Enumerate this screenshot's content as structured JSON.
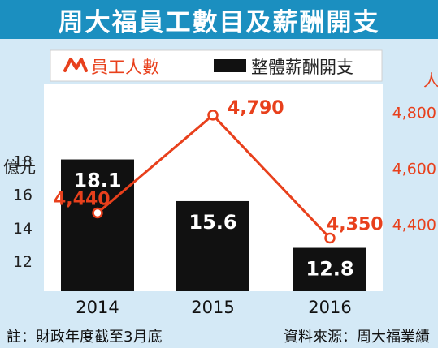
{
  "title": "周大福員工數目及薪酬開支",
  "legend": {
    "line_label": "員工人數",
    "bar_label": "整體薪酬開支"
  },
  "footer": {
    "note": "註：財政年度截至3月底",
    "source": "資料來源：周大福業績"
  },
  "colors": {
    "title_bg": "#1b8fc0",
    "plot_bg": "#ffffff",
    "panel_bg": "#d4e9f6",
    "bar": "#111111",
    "line": "#e8401c",
    "left_axis_text": "#222222"
  },
  "chart_data": {
    "type": "bar",
    "categories": [
      "2014",
      "2015",
      "2016"
    ],
    "series": [
      {
        "name": "整體薪酬開支",
        "type": "bar",
        "axis": "left",
        "values": [
          18.1,
          15.6,
          12.8
        ],
        "labels": [
          "18.1",
          "15.6",
          "12.8"
        ]
      },
      {
        "name": "員工人數",
        "type": "line",
        "axis": "right",
        "values": [
          4440,
          4790,
          4350
        ],
        "labels": [
          "4,440",
          "4,790",
          "4,350"
        ]
      }
    ],
    "left_axis": {
      "unit": "億元",
      "ticks": [
        12,
        14,
        16,
        18
      ],
      "tick_labels": [
        "12",
        "14",
        "16",
        "18"
      ],
      "range": [
        10.2,
        22.6
      ]
    },
    "right_axis": {
      "unit": "人",
      "ticks": [
        4400,
        4600,
        4800
      ],
      "tick_labels": [
        "4,400",
        "4,600",
        "4,800"
      ],
      "range": [
        4160,
        4900
      ]
    },
    "grid": false,
    "legend_position": "top"
  }
}
